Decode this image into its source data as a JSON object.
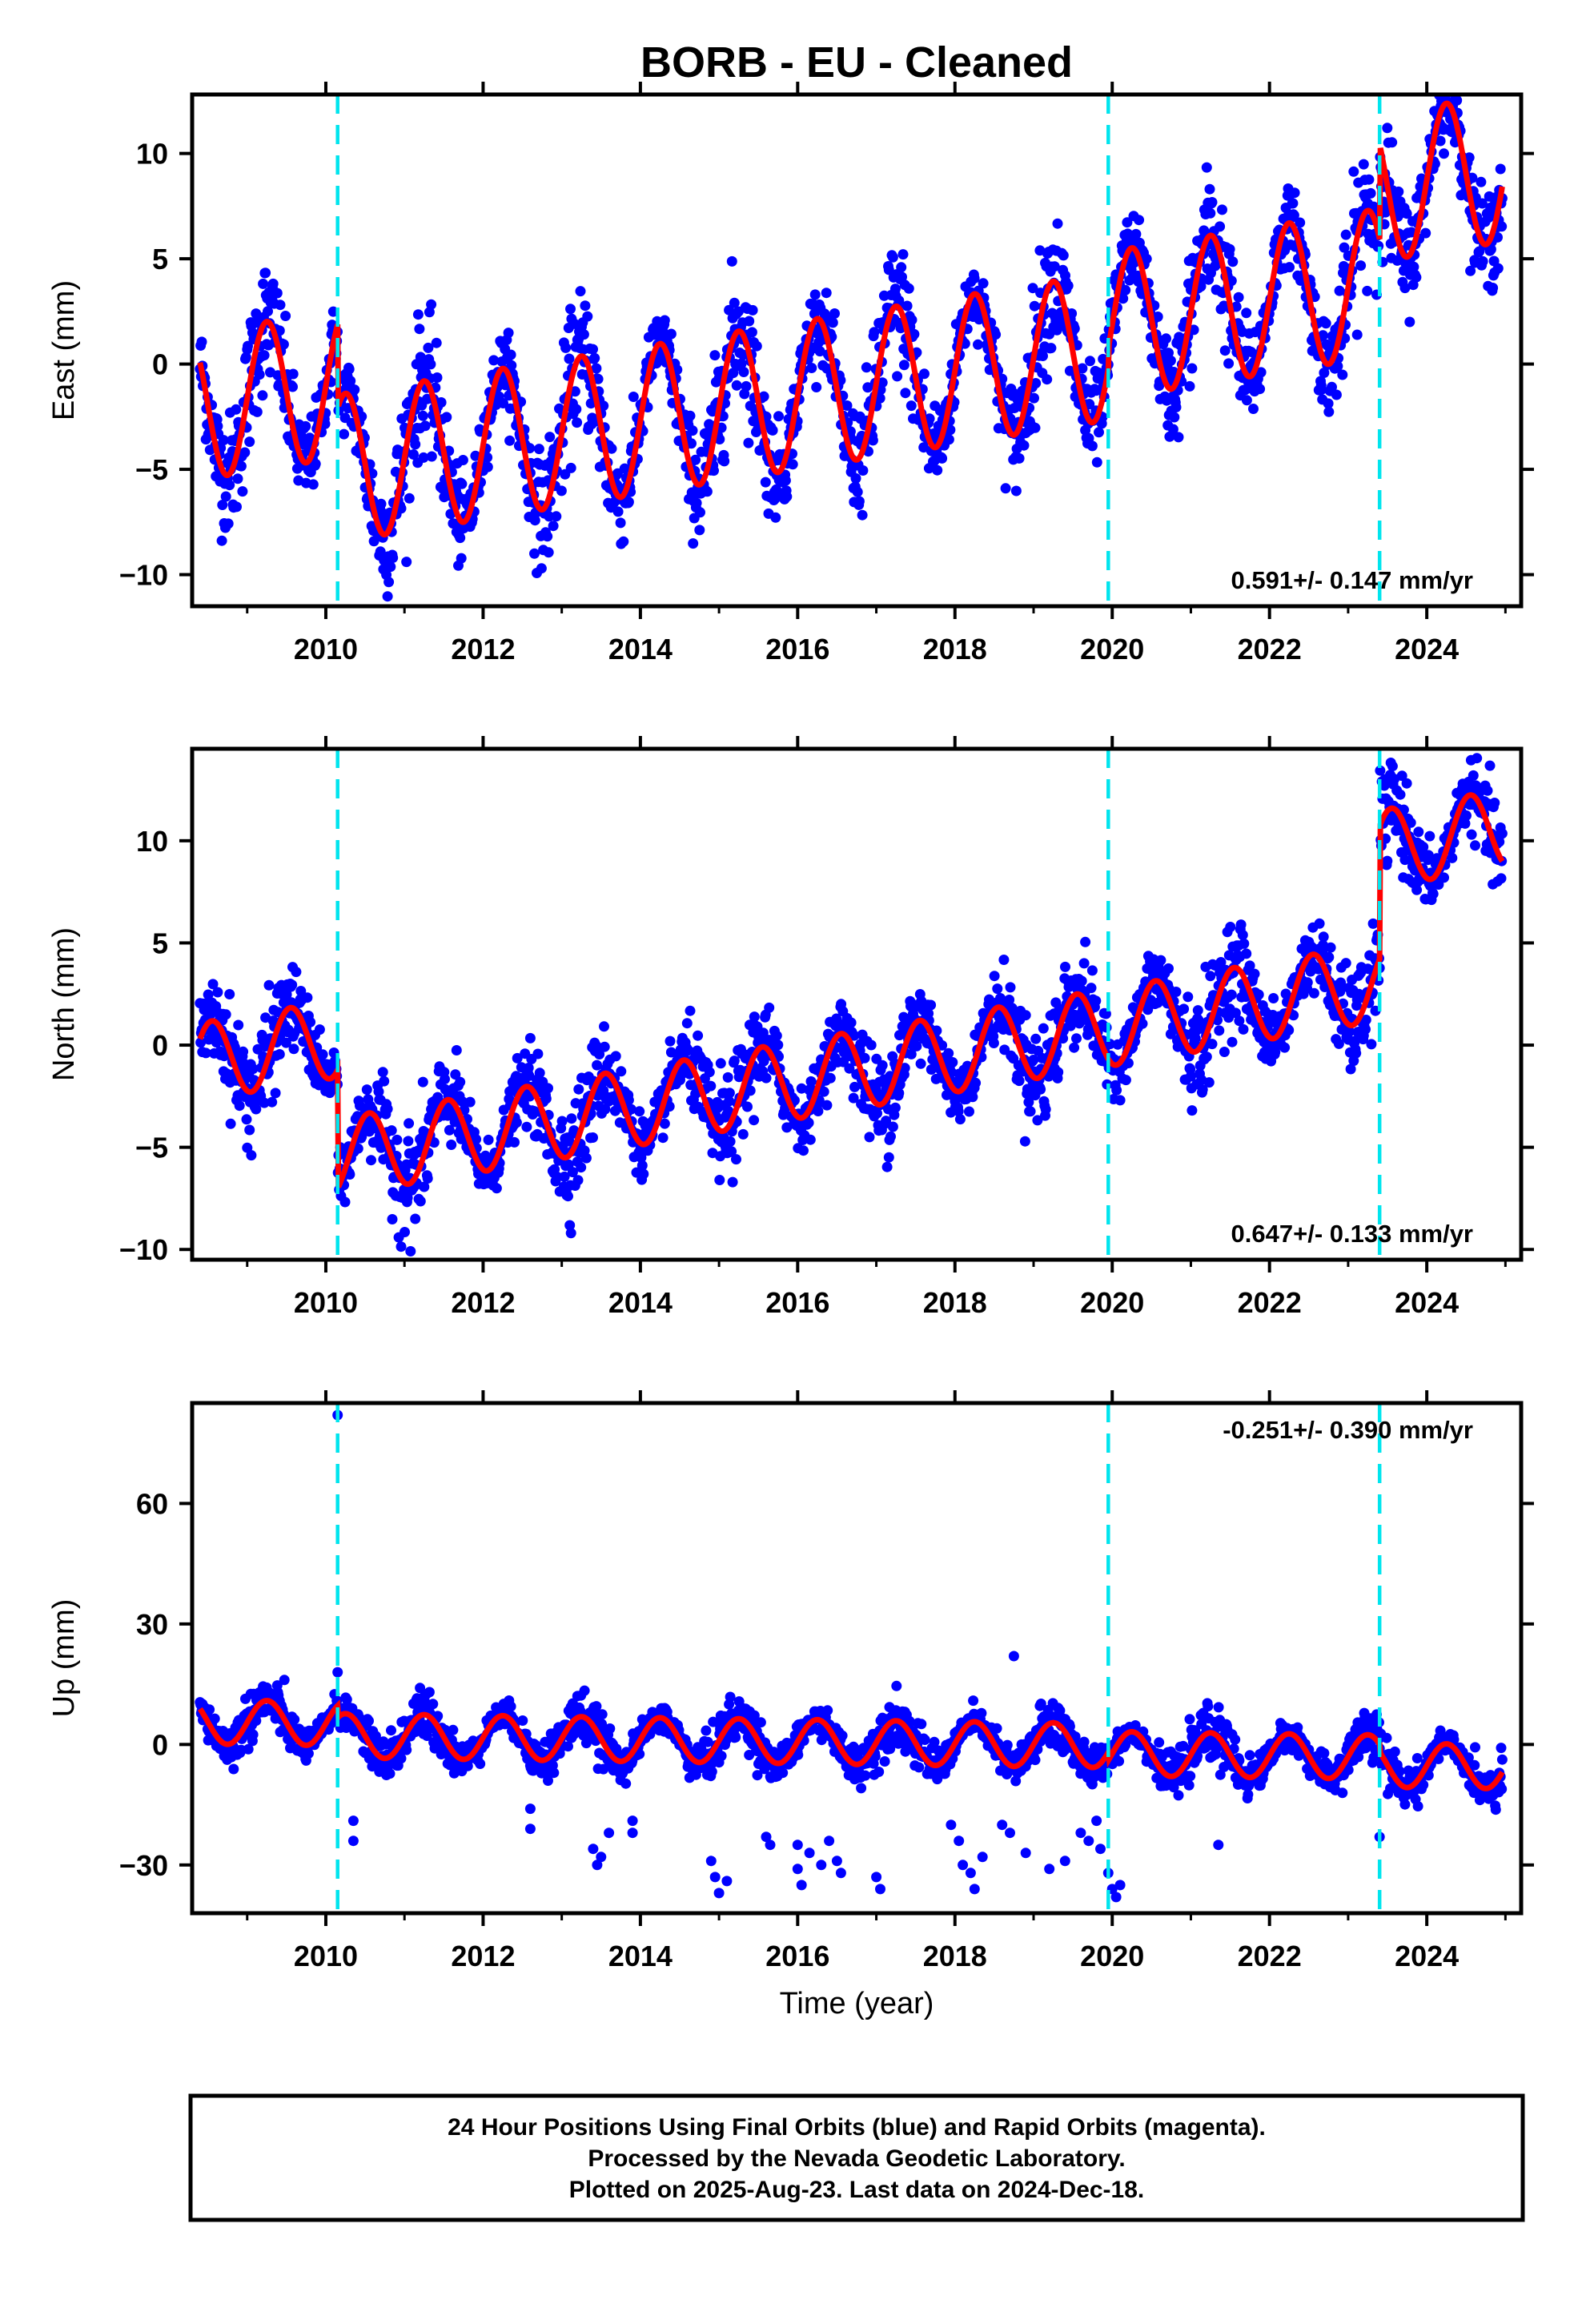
{
  "title": "BORB  - EU - Cleaned",
  "colors": {
    "points": "#0000ff",
    "fit": "#ff0000",
    "steps": "#00e5ee",
    "frame": "#000000"
  },
  "chart_data": [
    {
      "type": "scatter",
      "ylabel": "East (mm)",
      "xlim": [
        2008.3,
        2025.2
      ],
      "ylim": [
        -11.5,
        12.8
      ],
      "yticks": [
        -10,
        -5,
        0,
        5,
        10
      ],
      "xticks": [
        2010,
        2012,
        2014,
        2016,
        2018,
        2020,
        2022,
        2024
      ],
      "rate_text": "0.591+/- 0.147 mm/yr",
      "rate_position": "bottom-right",
      "step_epochs": [
        2010.15,
        2019.95,
        2023.4
      ],
      "series": [
        {
          "name": "Final Orbits",
          "color": "#0000ff",
          "trend": {
            "start": 2008.4,
            "end": 2024.96,
            "rate": 0.591,
            "amplitude": 3.5,
            "phase": 2009.0,
            "offsets": [
              {
                "epoch": 2010.15,
                "delta": -4.0
              },
              {
                "epoch": 2019.95,
                "delta": 1.0
              },
              {
                "epoch": 2023.4,
                "delta": 4.5
              }
            ],
            "scatter": 1.6
          }
        },
        {
          "name": "Fit",
          "color": "#ff0000",
          "kind": "line"
        }
      ]
    },
    {
      "type": "scatter",
      "ylabel": "North (mm)",
      "xlim": [
        2008.3,
        2025.2
      ],
      "ylim": [
        -10.5,
        14.5
      ],
      "yticks": [
        -10,
        -5,
        0,
        5,
        10
      ],
      "xticks": [
        2010,
        2012,
        2014,
        2016,
        2018,
        2020,
        2022,
        2024
      ],
      "rate_text": "0.647+/- 0.133 mm/yr",
      "rate_position": "bottom-right",
      "step_epochs": [
        2010.15,
        2019.95,
        2023.4
      ],
      "series": [
        {
          "name": "Final Orbits",
          "color": "#0000ff",
          "trend": {
            "start": 2008.4,
            "end": 2024.96,
            "rate": 0.647,
            "amplitude": 1.9,
            "phase": 2009.3,
            "offsets": [
              {
                "epoch": 2010.15,
                "delta": -5.8
              },
              {
                "epoch": 2019.95,
                "delta": 0.0
              },
              {
                "epoch": 2023.4,
                "delta": 6.5
              }
            ],
            "scatter": 1.3
          }
        },
        {
          "name": "Fit",
          "color": "#ff0000",
          "kind": "line"
        }
      ]
    },
    {
      "type": "scatter",
      "ylabel": "Up (mm)",
      "xlabel": "Time (year)",
      "xlim": [
        2008.3,
        2025.2
      ],
      "ylim": [
        -42,
        85
      ],
      "yticks": [
        -30,
        0,
        30,
        60
      ],
      "xticks": [
        2010,
        2012,
        2014,
        2016,
        2018,
        2020,
        2022,
        2024
      ],
      "rate_text": "-0.251+/- 0.390 mm/yr",
      "rate_position": "top-right",
      "step_epochs": [
        2010.15,
        2019.95,
        2023.4
      ],
      "series": [
        {
          "name": "Final Orbits",
          "color": "#0000ff",
          "trend": {
            "start": 2008.4,
            "end": 2024.96,
            "rate": -0.251,
            "amplitude": 5.5,
            "phase": 2009.0,
            "offsets": [
              {
                "epoch": 2010.15,
                "delta": -3.0
              },
              {
                "epoch": 2019.95,
                "delta": -2.0
              },
              {
                "epoch": 2023.4,
                "delta": -2.0
              }
            ],
            "scatter": 3.2
          },
          "outliers": [
            [
              2010.15,
              82
            ],
            [
              2010.15,
              18
            ],
            [
              2010.35,
              -19
            ],
            [
              2010.35,
              -24
            ],
            [
              2012.6,
              -16
            ],
            [
              2012.6,
              -21
            ],
            [
              2013.4,
              -26
            ],
            [
              2013.45,
              -30
            ],
            [
              2013.5,
              -28
            ],
            [
              2013.6,
              -22
            ],
            [
              2013.9,
              -19
            ],
            [
              2013.9,
              -22
            ],
            [
              2014.9,
              -29
            ],
            [
              2014.95,
              -33
            ],
            [
              2015.0,
              -37
            ],
            [
              2015.1,
              -34
            ],
            [
              2015.6,
              -23
            ],
            [
              2015.65,
              -25
            ],
            [
              2016.0,
              -25
            ],
            [
              2016.0,
              -31
            ],
            [
              2016.05,
              -35
            ],
            [
              2016.15,
              -27
            ],
            [
              2016.3,
              -30
            ],
            [
              2016.4,
              -24
            ],
            [
              2016.5,
              -29
            ],
            [
              2016.55,
              -32
            ],
            [
              2017.0,
              -33
            ],
            [
              2017.05,
              -36
            ],
            [
              2017.95,
              -20
            ],
            [
              2018.05,
              -24
            ],
            [
              2018.1,
              -30
            ],
            [
              2018.2,
              -32
            ],
            [
              2018.25,
              -36
            ],
            [
              2018.35,
              -28
            ],
            [
              2018.6,
              -20
            ],
            [
              2018.7,
              -22
            ],
            [
              2018.75,
              22
            ],
            [
              2018.9,
              -27
            ],
            [
              2019.2,
              -31
            ],
            [
              2019.4,
              -29
            ],
            [
              2019.6,
              -22
            ],
            [
              2019.7,
              -24
            ],
            [
              2019.8,
              -19
            ],
            [
              2019.85,
              -26
            ],
            [
              2019.95,
              -32
            ],
            [
              2020.0,
              -36
            ],
            [
              2020.05,
              -38
            ],
            [
              2020.1,
              -35
            ],
            [
              2021.35,
              -25
            ],
            [
              2023.4,
              -23
            ]
          ]
        },
        {
          "name": "Fit",
          "color": "#ff0000",
          "kind": "line"
        }
      ]
    }
  ],
  "footer": {
    "line1": "24 Hour Positions Using Final Orbits (blue) and Rapid Orbits (magenta).",
    "line2": "Processed by the Nevada Geodetic Laboratory.",
    "line3": "Plotted on 2025-Aug-23. Last data on 2024-Dec-18."
  }
}
